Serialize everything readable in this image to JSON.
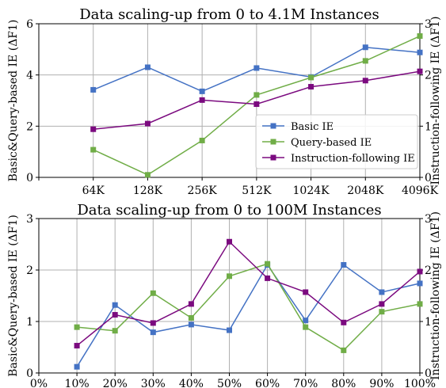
{
  "chart_data": [
    {
      "type": "line",
      "title": "Data scaling-up from 0 to 4.1M Instances",
      "xlabel": "",
      "ylabel_left": "Basic&Query-based IE (ΔF1)",
      "ylabel_right": "Instruction-following IE (ΔF1)",
      "categories": [
        "",
        "64K",
        "128K",
        "256K",
        "512K",
        "1024K",
        "2048K",
        "4096K"
      ],
      "y_left_lim": [
        0,
        6
      ],
      "y_left_ticks": [
        "0",
        "2",
        "4",
        "6"
      ],
      "y_right_lim": [
        0,
        3
      ],
      "y_right_ticks": [
        "0",
        "1",
        "2",
        "3"
      ],
      "grid": true,
      "legend_position": "lower-right",
      "series": [
        {
          "name": "Basic IE",
          "axis": "left",
          "color": "#4472c4",
          "values": [
            null,
            3.42,
            4.3,
            3.36,
            4.27,
            3.92,
            5.08,
            4.88
          ]
        },
        {
          "name": "Query-based IE",
          "axis": "left",
          "color": "#70ad47",
          "values": [
            null,
            1.08,
            0.1,
            1.44,
            3.22,
            3.9,
            4.55,
            5.52
          ]
        },
        {
          "name": "Instruction-following IE",
          "axis": "right",
          "color": "#7b0a7f",
          "values": [
            null,
            0.94,
            1.05,
            1.51,
            1.43,
            1.77,
            1.89,
            2.07
          ]
        }
      ]
    },
    {
      "type": "line",
      "title": "Data scaling-up from 0 to 100M Instances",
      "xlabel": "",
      "ylabel_left": "Basic&Query-based IE (ΔF1)",
      "ylabel_right": "Instruction-following IE (ΔF1)",
      "categories": [
        "0%",
        "10%",
        "20%",
        "30%",
        "40%",
        "50%",
        "60%",
        "70%",
        "80%",
        "90%",
        "100%"
      ],
      "y_left_lim": [
        0,
        3
      ],
      "y_left_ticks": [
        "0",
        "1",
        "2",
        "3"
      ],
      "y_right_lim": [
        0,
        3
      ],
      "y_right_ticks": [
        "0",
        "1",
        "2",
        "3"
      ],
      "grid": true,
      "legend_position": "none",
      "series": [
        {
          "name": "Basic IE",
          "axis": "left",
          "color": "#4472c4",
          "values": [
            null,
            0.12,
            1.32,
            0.79,
            0.94,
            0.83,
            2.1,
            1.02,
            2.1,
            1.57,
            1.74
          ]
        },
        {
          "name": "Query-based IE",
          "axis": "left",
          "color": "#70ad47",
          "values": [
            null,
            0.89,
            0.82,
            1.55,
            1.07,
            1.88,
            2.12,
            0.89,
            0.44,
            1.19,
            1.34
          ]
        },
        {
          "name": "Instruction-following IE",
          "axis": "right",
          "color": "#7b0a7f",
          "values": [
            null,
            0.53,
            1.13,
            0.97,
            1.34,
            2.55,
            1.84,
            1.57,
            0.98,
            1.34,
            1.97
          ]
        }
      ]
    }
  ]
}
